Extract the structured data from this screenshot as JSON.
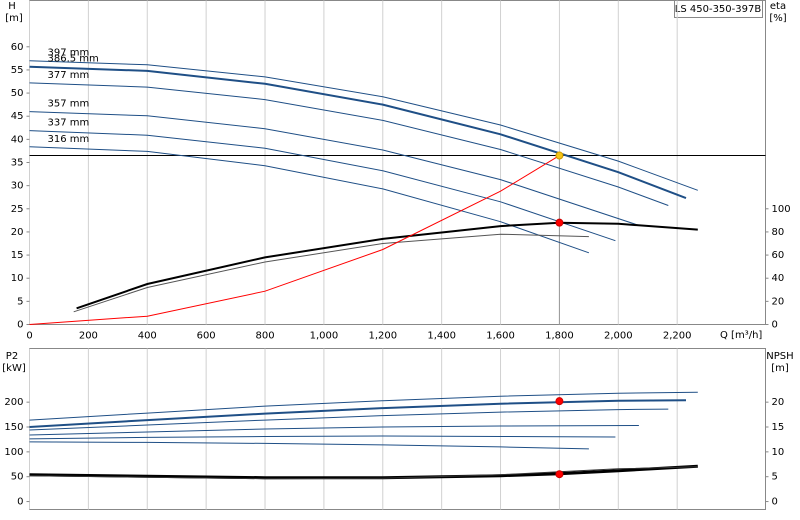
{
  "chart_data": [
    {
      "type": "line",
      "title": "LS 450-350-397B",
      "x_label": "Q [m³/h]",
      "y_label": "H",
      "y_unit": "[m]",
      "y2_label": "eta",
      "y2_unit": "[%]",
      "xlim": [
        0,
        2500
      ],
      "xticks": [
        0,
        200,
        400,
        600,
        800,
        {
          "value": 1000,
          "label": "1,000"
        },
        {
          "value": 1200,
          "label": "1,200"
        },
        {
          "value": 1400,
          "label": "1,400"
        },
        {
          "value": 1600,
          "label": "1,600"
        },
        {
          "value": 1800,
          "label": "1,800"
        },
        {
          "value": 2000,
          "label": "2,000"
        },
        {
          "value": 2200,
          "label": "2,200"
        }
      ],
      "ylim": [
        0,
        70
      ],
      "yticks": [
        0,
        5,
        10,
        15,
        20,
        25,
        30,
        35,
        40,
        45,
        50,
        55,
        60
      ],
      "y2lim": [
        0,
        280
      ],
      "y2ticks": [
        0,
        20,
        40,
        60,
        80,
        100
      ],
      "grid": "x",
      "series": [
        {
          "name": "397 mm",
          "color": "#1f4f86",
          "x": [
            0,
            400,
            800,
            1200,
            1600,
            2000,
            2270
          ],
          "values": [
            57,
            56.1,
            53.5,
            49.2,
            43.1,
            35.3,
            29.0
          ]
        },
        {
          "name": "386.5 mm",
          "color": "#1f4f86",
          "line_width": 2,
          "x": [
            0,
            400,
            800,
            1200,
            1600,
            2000,
            2230
          ],
          "values": [
            55.7,
            54.8,
            52.0,
            47.5,
            41.1,
            32.9,
            27.3
          ]
        },
        {
          "name": "377 mm",
          "color": "#1f4f86",
          "x": [
            0,
            400,
            800,
            1200,
            1600,
            2000,
            2170
          ],
          "values": [
            52.2,
            51.3,
            48.6,
            44.1,
            37.8,
            29.7,
            25.7
          ]
        },
        {
          "name": "357 mm",
          "color": "#1f4f86",
          "x": [
            0,
            400,
            800,
            1200,
            1600,
            2070
          ],
          "values": [
            46,
            45.1,
            42.3,
            37.7,
            31.3,
            21.4
          ]
        },
        {
          "name": "337 mm",
          "color": "#1f4f86",
          "x": [
            0,
            400,
            800,
            1200,
            1600,
            1990
          ],
          "values": [
            41.9,
            40.9,
            38.1,
            33.2,
            26.5,
            18.1
          ]
        },
        {
          "name": "316 mm",
          "color": "#1f4f86",
          "x": [
            0,
            400,
            800,
            1200,
            1600,
            1900
          ],
          "values": [
            38.4,
            37.4,
            34.3,
            29.3,
            22.2,
            15.5
          ]
        },
        {
          "color": "#000000",
          "axis": "y2",
          "line_width": 2,
          "x": [
            160,
            400,
            800,
            1200,
            1600,
            1800,
            2000,
            2270
          ],
          "values": [
            14,
            35,
            58,
            74,
            85,
            88,
            87,
            82
          ]
        },
        {
          "color": "#555555",
          "axis": "y2",
          "x": [
            150,
            400,
            800,
            1200,
            1600,
            1900
          ],
          "values": [
            11,
            32,
            54,
            70,
            78,
            76
          ]
        },
        {
          "color": "#ff0000",
          "x": [
            0,
            400,
            800,
            1200,
            1600,
            1800
          ],
          "values": [
            0,
            1.8,
            7.2,
            16.2,
            28.8,
            36.5
          ]
        },
        {
          "color": "#f5c518",
          "mode": "marker",
          "crosshair": true,
          "x": [
            1800
          ],
          "values": [
            36.5
          ]
        },
        {
          "color": "#ff0000",
          "mode": "marker",
          "axis": "y2",
          "x": [
            1800
          ],
          "values": [
            88
          ]
        }
      ]
    },
    {
      "type": "line",
      "y_label": "P2",
      "y_unit": "[kW]",
      "y2_label": "NPSH",
      "y2_unit": "[m]",
      "xlim": [
        0,
        2500
      ],
      "ylim": [
        -16,
        308
      ],
      "yticks": [
        0,
        50,
        100,
        150,
        200
      ],
      "y2lim": [
        -1.6,
        30.8
      ],
      "y2ticks": [
        0,
        5,
        10,
        15,
        20
      ],
      "grid": "x",
      "series": [
        {
          "color": "#1f4f86",
          "x": [
            0,
            400,
            800,
            1200,
            1600,
            2000,
            2270
          ],
          "values": [
            164,
            178,
            192,
            203,
            212,
            218,
            220
          ]
        },
        {
          "color": "#1f4f86",
          "line_width": 2,
          "x": [
            0,
            400,
            800,
            1200,
            1600,
            2000,
            2230
          ],
          "values": [
            150,
            164,
            177,
            188,
            197,
            203,
            204
          ]
        },
        {
          "color": "#1f4f86",
          "x": [
            0,
            400,
            800,
            1200,
            1600,
            2000,
            2170
          ],
          "values": [
            144,
            154,
            164,
            173,
            180,
            185,
            186
          ]
        },
        {
          "color": "#1f4f86",
          "x": [
            0,
            400,
            800,
            1200,
            1600,
            2070
          ],
          "values": [
            134,
            140,
            146,
            150,
            152,
            153
          ]
        },
        {
          "color": "#1f4f86",
          "x": [
            0,
            400,
            800,
            1200,
            1600,
            1990
          ],
          "values": [
            126,
            129,
            131,
            132,
            131,
            130
          ]
        },
        {
          "color": "#1f4f86",
          "x": [
            0,
            400,
            800,
            1200,
            1600,
            1900
          ],
          "values": [
            120,
            119,
            117,
            114,
            110,
            106
          ]
        },
        {
          "color": "#000000",
          "axis": "y2",
          "line_width": 3,
          "x": [
            0,
            400,
            800,
            1200,
            1600,
            1800,
            2000,
            2270
          ],
          "values": [
            5.4,
            5.1,
            4.8,
            4.8,
            5.2,
            5.6,
            6.2,
            7.1
          ]
        },
        {
          "color": "#333333",
          "axis": "y2",
          "x": [
            0,
            400,
            800,
            1200,
            1600,
            1800,
            2000,
            2270
          ],
          "values": [
            5.2,
            4.9,
            4.6,
            4.7,
            5.4,
            6.0,
            6.6,
            7.0
          ]
        },
        {
          "color": "#ff0000",
          "mode": "marker",
          "x": [
            1800
          ],
          "values": [
            202
          ]
        },
        {
          "color": "#ff0000",
          "mode": "marker",
          "axis": "y2",
          "x": [
            1800
          ],
          "values": [
            5.5
          ]
        }
      ]
    }
  ]
}
